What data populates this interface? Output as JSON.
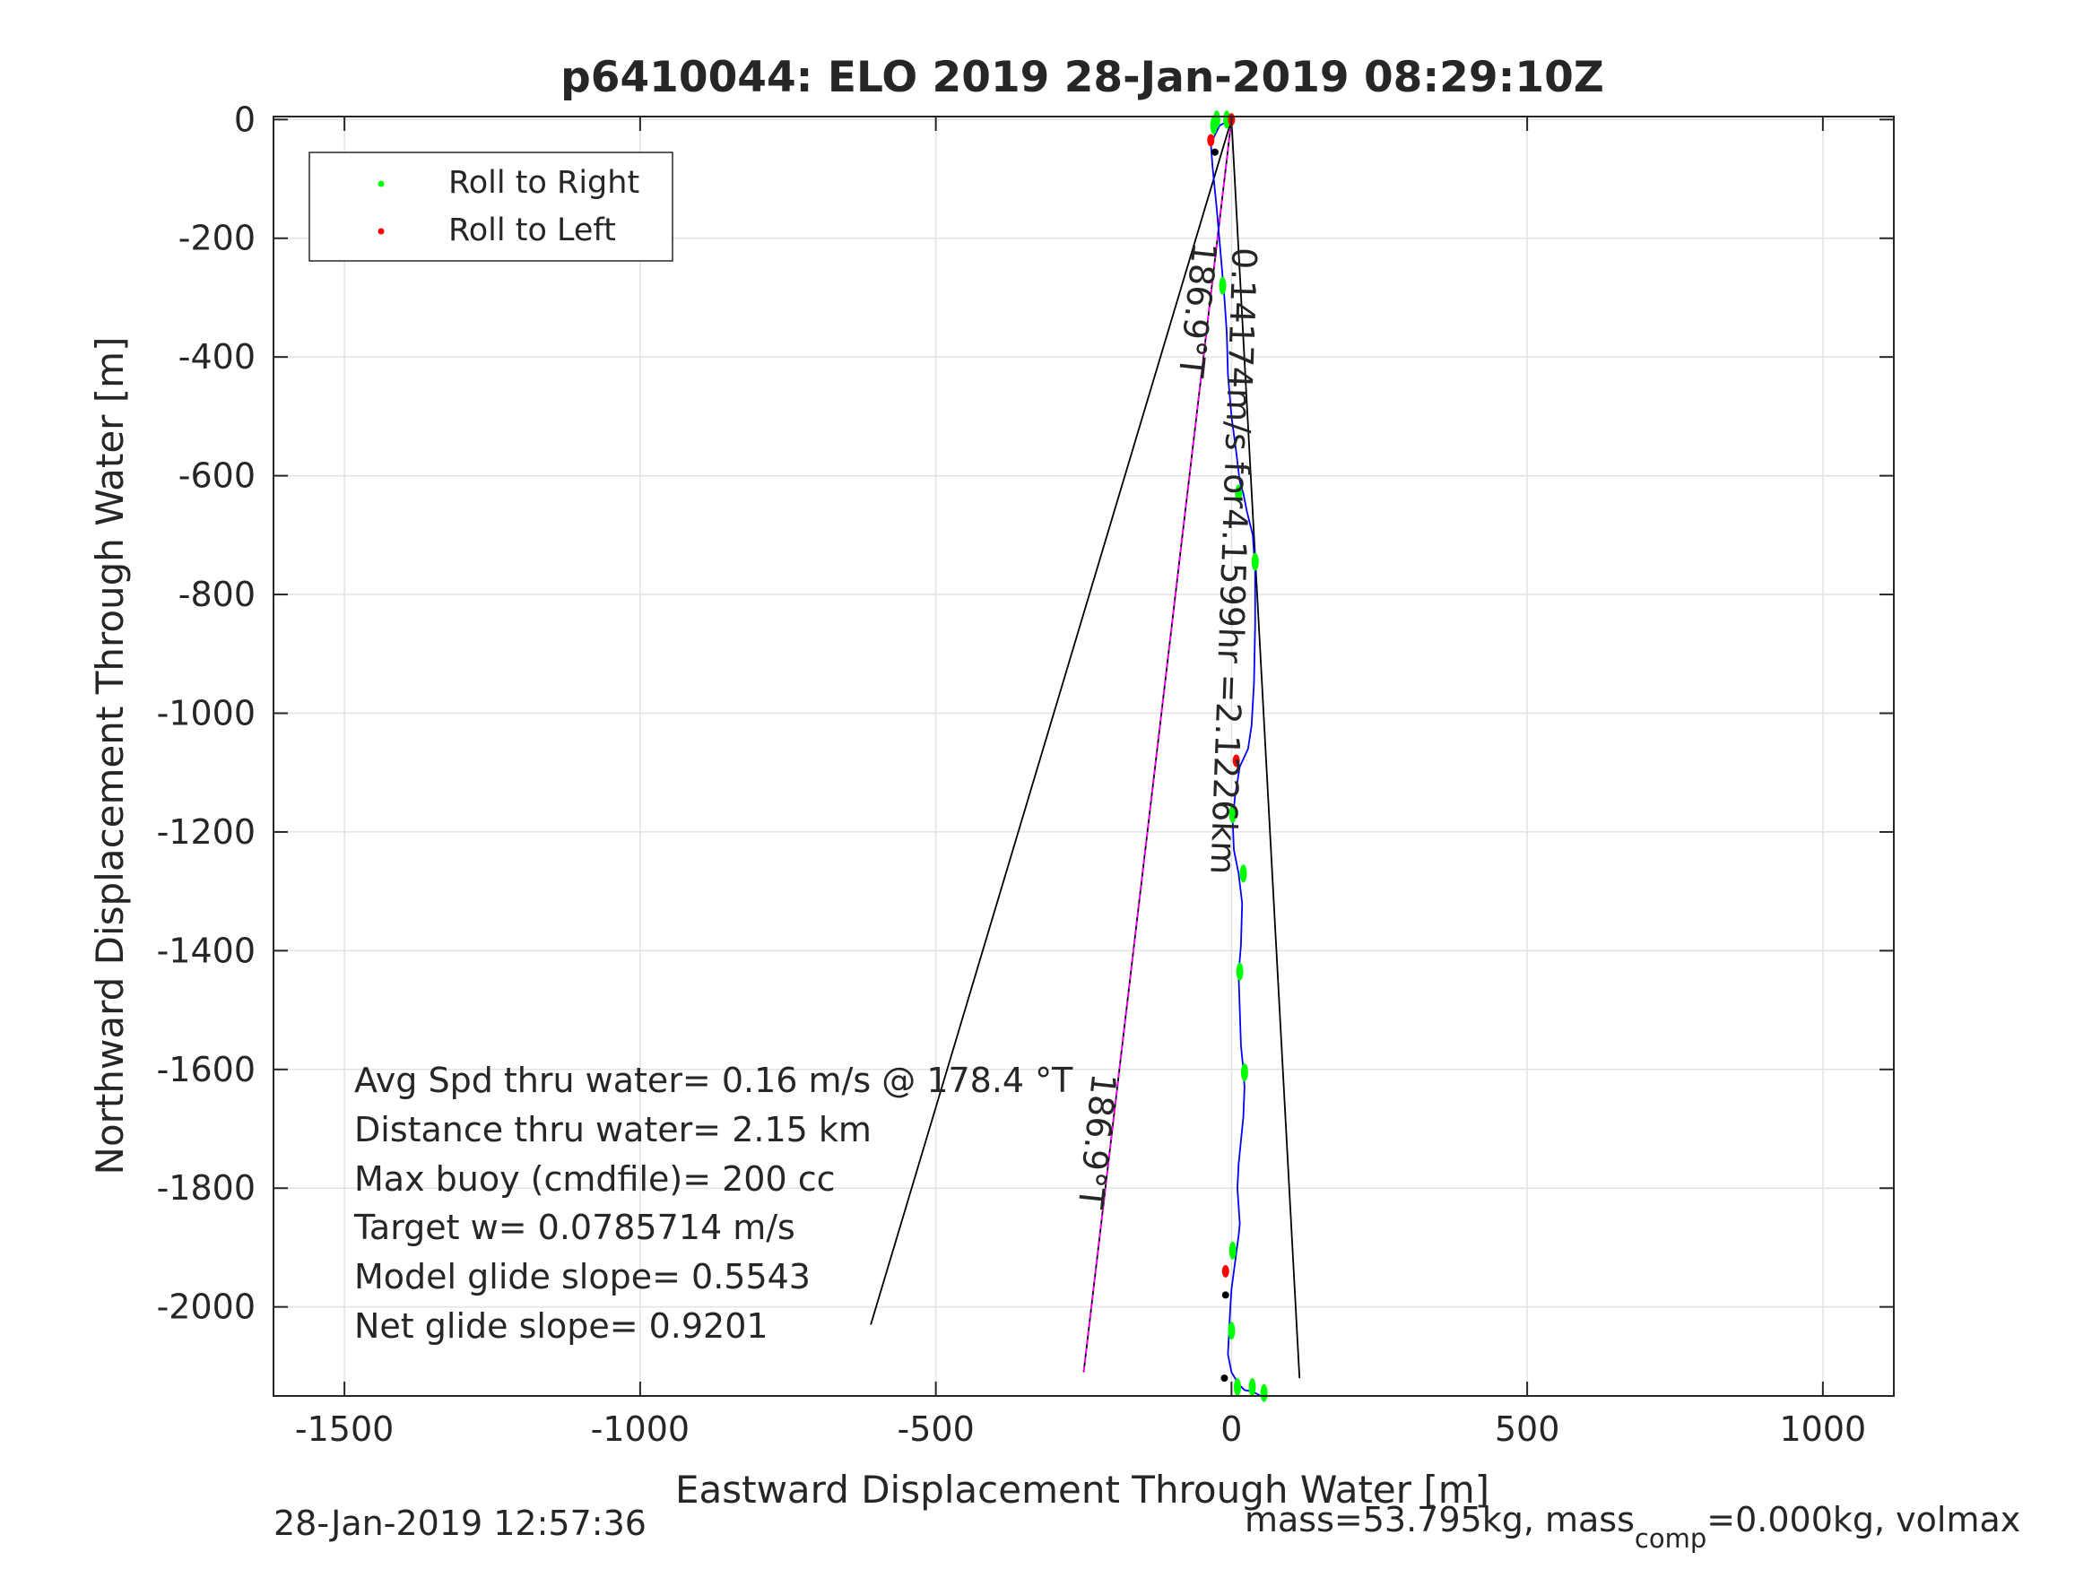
{
  "chart_data": {
    "type": "line",
    "title": "p6410044: ELO 2019 28-Jan-2019 08:29:10Z",
    "xlabel": "Eastward Displacement Through Water [m]",
    "ylabel": "Northward Displacement Through Water [m]",
    "xlim": [
      -1620,
      1120
    ],
    "ylim": [
      -2150,
      5
    ],
    "xticks": [
      -1500,
      -1000,
      -500,
      0,
      500,
      1000
    ],
    "yticks": [
      0,
      -200,
      -400,
      -600,
      -800,
      -1000,
      -1200,
      -1400,
      -1600,
      -1800,
      -2000
    ],
    "grid": true,
    "legend": {
      "position": "top-left",
      "entries": [
        {
          "label": "Roll to Right",
          "color": "#00ff00"
        },
        {
          "label": "Roll to Left",
          "color": "#ff0000"
        }
      ]
    },
    "track": {
      "color": "#0000ff",
      "x": [
        0,
        -20,
        -35,
        -32,
        -25,
        -18,
        -12,
        -8,
        -6,
        0,
        8,
        14,
        20,
        26,
        36,
        40,
        40,
        38,
        34,
        28,
        14,
        6,
        2,
        4,
        12,
        18,
        16,
        12,
        14,
        16,
        20,
        22,
        20,
        15,
        12,
        10,
        12,
        14,
        12,
        8,
        4,
        0,
        -2,
        -4,
        -6,
        0,
        12,
        22,
        32,
        40,
        50
      ],
      "y": [
        0,
        -10,
        -40,
        -80,
        -150,
        -230,
        -300,
        -360,
        -430,
        -500,
        -560,
        -610,
        -630,
        -660,
        -700,
        -760,
        -850,
        -950,
        -1020,
        -1060,
        -1090,
        -1140,
        -1180,
        -1230,
        -1270,
        -1320,
        -1390,
        -1440,
        -1500,
        -1560,
        -1600,
        -1630,
        -1680,
        -1730,
        -1760,
        -1800,
        -1830,
        -1860,
        -1880,
        -1910,
        -1940,
        -1970,
        -2000,
        -2040,
        -2080,
        -2110,
        -2130,
        -2140,
        -2142,
        -2145,
        -2150
      ]
    },
    "roll_right_points": [
      {
        "x": -25,
        "y": 0
      },
      {
        "x": -8,
        "y": 0
      },
      {
        "x": -30,
        "y": -10
      },
      {
        "x": -15,
        "y": -280
      },
      {
        "x": 12,
        "y": -630
      },
      {
        "x": 40,
        "y": -745
      },
      {
        "x": 2,
        "y": -1170
      },
      {
        "x": 20,
        "y": -1270
      },
      {
        "x": 14,
        "y": -1435
      },
      {
        "x": 22,
        "y": -1605
      },
      {
        "x": 2,
        "y": -1905
      },
      {
        "x": 0,
        "y": -2040
      },
      {
        "x": 10,
        "y": -2135
      },
      {
        "x": 35,
        "y": -2135
      },
      {
        "x": 55,
        "y": -2145
      }
    ],
    "roll_left_points": [
      {
        "x": -35,
        "y": -35
      },
      {
        "x": 8,
        "y": -1080
      },
      {
        "x": -10,
        "y": -1940
      },
      {
        "x": 0,
        "y": 0
      }
    ],
    "black_points": [
      {
        "x": -28,
        "y": -55
      },
      {
        "x": -10,
        "y": -1980
      },
      {
        "x": -12,
        "y": -2120
      }
    ],
    "annotation_lines": [
      {
        "color": "#000000",
        "x": [
          0,
          -610
        ],
        "y": [
          0,
          -2030
        ]
      },
      {
        "color": "#000000",
        "x": [
          0,
          115
        ],
        "y": [
          0,
          -2120
        ]
      },
      {
        "color": "#000000",
        "x": [
          0,
          -250
        ],
        "y": [
          0,
          -2110
        ]
      },
      {
        "color": "#ff00ff",
        "x": [
          0,
          -250
        ],
        "y": [
          0,
          -2110
        ],
        "dashed": true
      }
    ],
    "line_labels": [
      {
        "text": "0.14174m/s for4.1599hr =2.1226km",
        "x": 2,
        "y": -215,
        "angle": 92
      },
      {
        "text": "186.9°T",
        "x": -65,
        "y": -205,
        "angle": 96
      },
      {
        "text": "186.9°T",
        "x": -235,
        "y": -1605,
        "angle": 96
      }
    ],
    "stats_text": [
      "Avg Spd thru water=  0.16 m/s @ 178.4 °T",
      "Distance thru water=  2.15 km",
      "Max buoy (cmdfile)= 200 cc",
      "Target w= 0.0785714 m/s",
      "Model glide slope= 0.5543",
      "Net glide slope= 0.9201"
    ]
  },
  "footer": {
    "timestamp": "28-Jan-2019 12:57:36",
    "mass_text_pre": "mass=53.795kg, mass",
    "mass_sub": "comp",
    "mass_text_post": "=0.000kg, volmax"
  }
}
